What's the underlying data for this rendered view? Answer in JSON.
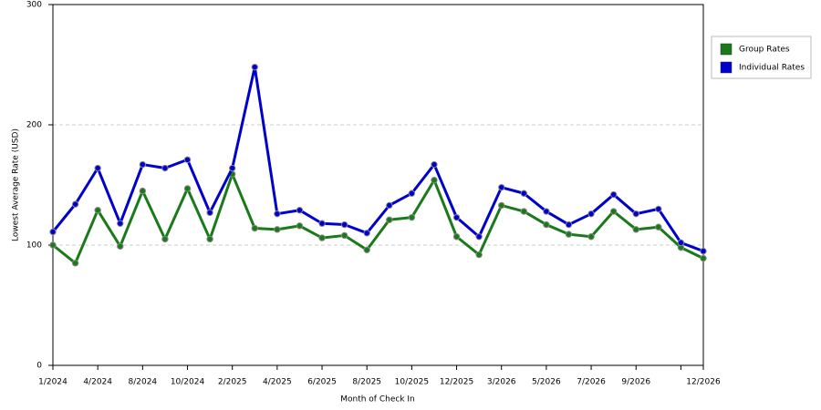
{
  "chart_data": {
    "type": "line",
    "x_label": "Month of Check In",
    "y_label": "Lowest Average Rate (USD)",
    "categories": [
      "1/2024",
      null,
      "4/2024",
      null,
      "8/2024",
      null,
      "10/2024",
      null,
      "2/2025",
      null,
      "4/2025",
      null,
      "6/2025",
      null,
      "8/2025",
      null,
      "10/2025",
      null,
      "12/2025",
      null,
      "3/2026",
      null,
      "5/2026",
      null,
      "7/2026",
      null,
      "9/2026",
      null,
      null,
      "12/2026"
    ],
    "series": [
      {
        "name": "Group Rates",
        "color": "#1a7a1a",
        "values": [
          100,
          85,
          129,
          99,
          145,
          105,
          147,
          105,
          159,
          114,
          113,
          116,
          106,
          108,
          96,
          121,
          123,
          154,
          107,
          92,
          133,
          128,
          117,
          109,
          107,
          128,
          113,
          115,
          98,
          89
        ]
      },
      {
        "name": "Individual Rates",
        "color": "#0000cc",
        "values": [
          111,
          134,
          164,
          118,
          167,
          164,
          171,
          127,
          164,
          248,
          126,
          129,
          118,
          117,
          110,
          133,
          143,
          167,
          123,
          107,
          148,
          143,
          128,
          117,
          126,
          142,
          126,
          130,
          102,
          95
        ]
      }
    ],
    "ylim": [
      0,
      300
    ],
    "yticks": [
      0,
      100,
      200,
      300
    ],
    "grid": true,
    "legend": "right"
  }
}
